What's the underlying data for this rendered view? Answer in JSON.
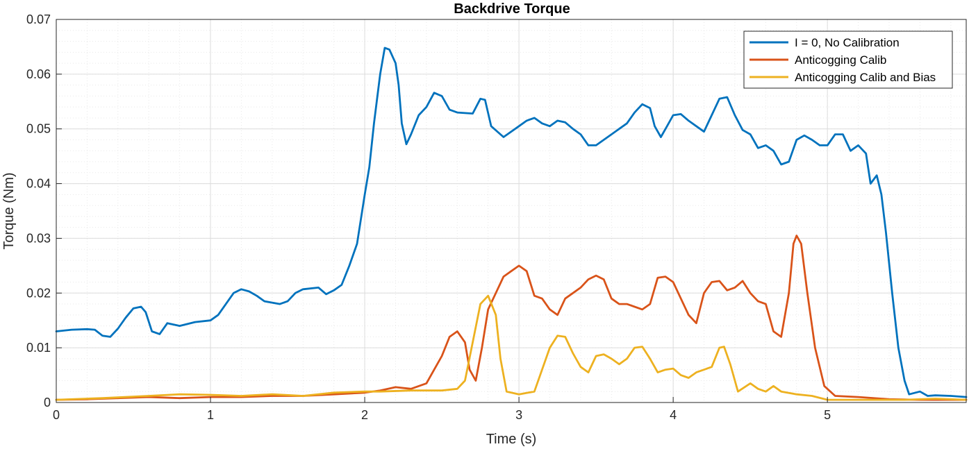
{
  "chart_data": {
    "type": "line",
    "title": "Backdrive Torque",
    "xlabel": "Time (s)",
    "ylabel": "Torque (Nm)",
    "xlim": [
      0,
      5.9
    ],
    "ylim": [
      0,
      0.07
    ],
    "grid": true,
    "minor_grid": true,
    "legend_position": "top-right",
    "x_ticks": [
      0,
      1,
      2,
      3,
      4,
      5
    ],
    "x_tick_labels": [
      "0",
      "1",
      "2",
      "3",
      "4",
      "5"
    ],
    "y_ticks": [
      0,
      0.01,
      0.02,
      0.03,
      0.04,
      0.05,
      0.06,
      0.07
    ],
    "y_tick_labels": [
      "0",
      "0.01",
      "0.02",
      "0.03",
      "0.04",
      "0.05",
      "0.06",
      "0.07"
    ],
    "series": [
      {
        "name": "I = 0, No Calibration",
        "color": "#0072BD",
        "points": [
          [
            0,
            0.013
          ],
          [
            0.1,
            0.0133
          ],
          [
            0.2,
            0.0134
          ],
          [
            0.25,
            0.0133
          ],
          [
            0.3,
            0.0122
          ],
          [
            0.35,
            0.012
          ],
          [
            0.4,
            0.0135
          ],
          [
            0.45,
            0.0155
          ],
          [
            0.5,
            0.0172
          ],
          [
            0.55,
            0.0175
          ],
          [
            0.58,
            0.0165
          ],
          [
            0.62,
            0.013
          ],
          [
            0.67,
            0.0125
          ],
          [
            0.72,
            0.0145
          ],
          [
            0.8,
            0.014
          ],
          [
            0.9,
            0.0147
          ],
          [
            1.0,
            0.015
          ],
          [
            1.05,
            0.016
          ],
          [
            1.1,
            0.018
          ],
          [
            1.15,
            0.02
          ],
          [
            1.2,
            0.0207
          ],
          [
            1.25,
            0.0203
          ],
          [
            1.3,
            0.0195
          ],
          [
            1.35,
            0.0185
          ],
          [
            1.45,
            0.018
          ],
          [
            1.5,
            0.0185
          ],
          [
            1.55,
            0.02
          ],
          [
            1.6,
            0.0207
          ],
          [
            1.7,
            0.021
          ],
          [
            1.75,
            0.0198
          ],
          [
            1.8,
            0.0205
          ],
          [
            1.85,
            0.0215
          ],
          [
            1.9,
            0.025
          ],
          [
            1.95,
            0.029
          ],
          [
            2.0,
            0.038
          ],
          [
            2.03,
            0.043
          ],
          [
            2.06,
            0.051
          ],
          [
            2.1,
            0.06
          ],
          [
            2.13,
            0.0648
          ],
          [
            2.16,
            0.0645
          ],
          [
            2.2,
            0.062
          ],
          [
            2.22,
            0.058
          ],
          [
            2.24,
            0.051
          ],
          [
            2.27,
            0.0472
          ],
          [
            2.3,
            0.049
          ],
          [
            2.35,
            0.0525
          ],
          [
            2.4,
            0.054
          ],
          [
            2.45,
            0.0566
          ],
          [
            2.5,
            0.056
          ],
          [
            2.55,
            0.0535
          ],
          [
            2.6,
            0.053
          ],
          [
            2.7,
            0.0528
          ],
          [
            2.75,
            0.0555
          ],
          [
            2.78,
            0.0553
          ],
          [
            2.82,
            0.0505
          ],
          [
            2.9,
            0.0485
          ],
          [
            3.0,
            0.0505
          ],
          [
            3.05,
            0.0515
          ],
          [
            3.1,
            0.052
          ],
          [
            3.15,
            0.051
          ],
          [
            3.2,
            0.0505
          ],
          [
            3.25,
            0.0515
          ],
          [
            3.3,
            0.0512
          ],
          [
            3.35,
            0.05
          ],
          [
            3.4,
            0.049
          ],
          [
            3.45,
            0.047
          ],
          [
            3.5,
            0.047
          ],
          [
            3.55,
            0.048
          ],
          [
            3.6,
            0.049
          ],
          [
            3.65,
            0.05
          ],
          [
            3.7,
            0.051
          ],
          [
            3.75,
            0.053
          ],
          [
            3.8,
            0.0545
          ],
          [
            3.85,
            0.0538
          ],
          [
            3.88,
            0.0505
          ],
          [
            3.92,
            0.0485
          ],
          [
            3.96,
            0.0505
          ],
          [
            4.0,
            0.0525
          ],
          [
            4.05,
            0.0527
          ],
          [
            4.1,
            0.0515
          ],
          [
            4.15,
            0.0505
          ],
          [
            4.2,
            0.0495
          ],
          [
            4.25,
            0.0525
          ],
          [
            4.3,
            0.0555
          ],
          [
            4.35,
            0.0558
          ],
          [
            4.4,
            0.0525
          ],
          [
            4.45,
            0.0498
          ],
          [
            4.5,
            0.049
          ],
          [
            4.55,
            0.0465
          ],
          [
            4.6,
            0.047
          ],
          [
            4.65,
            0.046
          ],
          [
            4.7,
            0.0435
          ],
          [
            4.75,
            0.044
          ],
          [
            4.8,
            0.048
          ],
          [
            4.85,
            0.0488
          ],
          [
            4.9,
            0.048
          ],
          [
            4.95,
            0.047
          ],
          [
            5.0,
            0.047
          ],
          [
            5.05,
            0.049
          ],
          [
            5.1,
            0.049
          ],
          [
            5.15,
            0.046
          ],
          [
            5.2,
            0.047
          ],
          [
            5.25,
            0.0455
          ],
          [
            5.28,
            0.04
          ],
          [
            5.32,
            0.0415
          ],
          [
            5.35,
            0.038
          ],
          [
            5.38,
            0.031
          ],
          [
            5.42,
            0.02
          ],
          [
            5.46,
            0.01
          ],
          [
            5.5,
            0.004
          ],
          [
            5.53,
            0.0015
          ],
          [
            5.6,
            0.002
          ],
          [
            5.65,
            0.0012
          ],
          [
            5.7,
            0.0013
          ],
          [
            5.8,
            0.0012
          ],
          [
            5.9,
            0.001
          ]
        ]
      },
      {
        "name": "Anticogging Calib",
        "color": "#D95319",
        "points": [
          [
            0,
            0.0005
          ],
          [
            0.2,
            0.0006
          ],
          [
            0.4,
            0.0008
          ],
          [
            0.6,
            0.001
          ],
          [
            0.8,
            0.0008
          ],
          [
            1.0,
            0.001
          ],
          [
            1.2,
            0.001
          ],
          [
            1.4,
            0.0012
          ],
          [
            1.6,
            0.0012
          ],
          [
            1.8,
            0.0015
          ],
          [
            2.0,
            0.0018
          ],
          [
            2.1,
            0.0022
          ],
          [
            2.2,
            0.0028
          ],
          [
            2.3,
            0.0025
          ],
          [
            2.4,
            0.0035
          ],
          [
            2.45,
            0.006
          ],
          [
            2.5,
            0.0085
          ],
          [
            2.55,
            0.012
          ],
          [
            2.6,
            0.013
          ],
          [
            2.65,
            0.011
          ],
          [
            2.68,
            0.006
          ],
          [
            2.72,
            0.004
          ],
          [
            2.76,
            0.01
          ],
          [
            2.8,
            0.017
          ],
          [
            2.85,
            0.02
          ],
          [
            2.9,
            0.023
          ],
          [
            2.95,
            0.024
          ],
          [
            3.0,
            0.025
          ],
          [
            3.05,
            0.024
          ],
          [
            3.1,
            0.0195
          ],
          [
            3.15,
            0.019
          ],
          [
            3.2,
            0.017
          ],
          [
            3.25,
            0.016
          ],
          [
            3.3,
            0.019
          ],
          [
            3.35,
            0.02
          ],
          [
            3.4,
            0.021
          ],
          [
            3.45,
            0.0225
          ],
          [
            3.5,
            0.0232
          ],
          [
            3.55,
            0.0225
          ],
          [
            3.6,
            0.019
          ],
          [
            3.65,
            0.018
          ],
          [
            3.7,
            0.018
          ],
          [
            3.75,
            0.0175
          ],
          [
            3.8,
            0.017
          ],
          [
            3.85,
            0.018
          ],
          [
            3.9,
            0.0228
          ],
          [
            3.95,
            0.023
          ],
          [
            4.0,
            0.022
          ],
          [
            4.05,
            0.019
          ],
          [
            4.1,
            0.016
          ],
          [
            4.15,
            0.0145
          ],
          [
            4.2,
            0.02
          ],
          [
            4.25,
            0.022
          ],
          [
            4.3,
            0.0222
          ],
          [
            4.35,
            0.0205
          ],
          [
            4.4,
            0.021
          ],
          [
            4.45,
            0.0222
          ],
          [
            4.5,
            0.02
          ],
          [
            4.55,
            0.0185
          ],
          [
            4.6,
            0.018
          ],
          [
            4.65,
            0.013
          ],
          [
            4.7,
            0.012
          ],
          [
            4.75,
            0.02
          ],
          [
            4.78,
            0.029
          ],
          [
            4.8,
            0.0305
          ],
          [
            4.83,
            0.029
          ],
          [
            4.87,
            0.02
          ],
          [
            4.92,
            0.01
          ],
          [
            4.98,
            0.003
          ],
          [
            5.05,
            0.0012
          ],
          [
            5.2,
            0.001
          ],
          [
            5.4,
            0.0006
          ],
          [
            5.6,
            0.0005
          ],
          [
            5.9,
            0.0005
          ]
        ]
      },
      {
        "name": "Anticogging Calib and Bias",
        "color": "#EDB120",
        "points": [
          [
            0,
            0.0005
          ],
          [
            0.3,
            0.0008
          ],
          [
            0.6,
            0.0012
          ],
          [
            0.8,
            0.0015
          ],
          [
            1.0,
            0.0014
          ],
          [
            1.2,
            0.0012
          ],
          [
            1.4,
            0.0015
          ],
          [
            1.6,
            0.0012
          ],
          [
            1.8,
            0.0018
          ],
          [
            2.0,
            0.002
          ],
          [
            2.1,
            0.002
          ],
          [
            2.3,
            0.0022
          ],
          [
            2.5,
            0.0022
          ],
          [
            2.6,
            0.0025
          ],
          [
            2.65,
            0.004
          ],
          [
            2.7,
            0.011
          ],
          [
            2.75,
            0.018
          ],
          [
            2.8,
            0.0195
          ],
          [
            2.85,
            0.016
          ],
          [
            2.88,
            0.008
          ],
          [
            2.92,
            0.002
          ],
          [
            3.0,
            0.0015
          ],
          [
            3.1,
            0.002
          ],
          [
            3.2,
            0.01
          ],
          [
            3.25,
            0.0122
          ],
          [
            3.3,
            0.012
          ],
          [
            3.35,
            0.009
          ],
          [
            3.4,
            0.0065
          ],
          [
            3.45,
            0.0055
          ],
          [
            3.5,
            0.0085
          ],
          [
            3.55,
            0.0088
          ],
          [
            3.6,
            0.008
          ],
          [
            3.65,
            0.007
          ],
          [
            3.7,
            0.008
          ],
          [
            3.75,
            0.01
          ],
          [
            3.8,
            0.0102
          ],
          [
            3.85,
            0.008
          ],
          [
            3.9,
            0.0055
          ],
          [
            3.95,
            0.006
          ],
          [
            4.0,
            0.0062
          ],
          [
            4.05,
            0.005
          ],
          [
            4.1,
            0.0045
          ],
          [
            4.15,
            0.0055
          ],
          [
            4.2,
            0.006
          ],
          [
            4.25,
            0.0065
          ],
          [
            4.3,
            0.01
          ],
          [
            4.33,
            0.0102
          ],
          [
            4.37,
            0.007
          ],
          [
            4.42,
            0.002
          ],
          [
            4.5,
            0.0035
          ],
          [
            4.55,
            0.0025
          ],
          [
            4.6,
            0.002
          ],
          [
            4.65,
            0.003
          ],
          [
            4.7,
            0.002
          ],
          [
            4.8,
            0.0015
          ],
          [
            4.9,
            0.0012
          ],
          [
            5.0,
            0.0005
          ],
          [
            5.5,
            0.0005
          ],
          [
            5.7,
            0.0007
          ],
          [
            5.9,
            0.0005
          ]
        ]
      }
    ]
  }
}
